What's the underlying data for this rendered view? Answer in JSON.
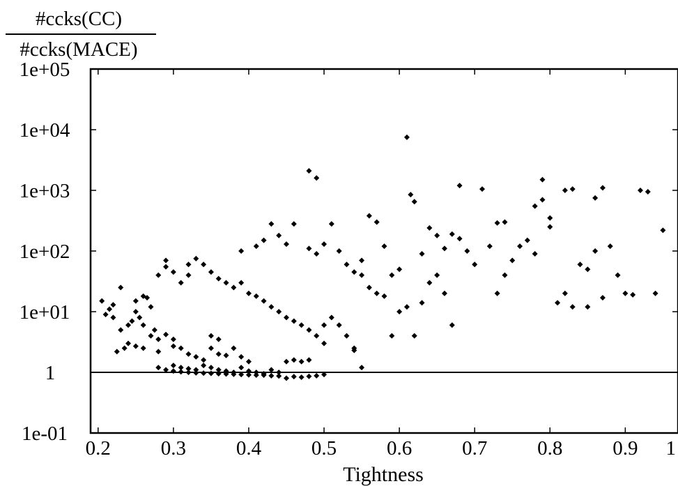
{
  "chart_data": {
    "type": "scatter",
    "title": "",
    "ylabel_numerator": "#ccks(CC)",
    "ylabel_denominator": "#ccks(MACE)",
    "xlabel": "Tightness",
    "y_scale": "log",
    "xlim": [
      0.19,
      0.97
    ],
    "ylim": [
      0.1,
      100000
    ],
    "grid": false,
    "legend": "none",
    "x_ticks": [
      {
        "value": 0.2,
        "label": "0.2"
      },
      {
        "value": 0.3,
        "label": "0.3"
      },
      {
        "value": 0.4,
        "label": "0.4"
      },
      {
        "value": 0.5,
        "label": "0.5"
      },
      {
        "value": 0.6,
        "label": "0.6"
      },
      {
        "value": 0.7,
        "label": "0.7"
      },
      {
        "value": 0.8,
        "label": "0.8"
      },
      {
        "value": 0.9,
        "label": "0.9"
      },
      {
        "value": 1.0,
        "label": "1"
      }
    ],
    "y_ticks": [
      {
        "value": 0.1,
        "label": "1e-01"
      },
      {
        "value": 1,
        "label": "1"
      },
      {
        "value": 10,
        "label": "1e+01"
      },
      {
        "value": 100,
        "label": "1e+02"
      },
      {
        "value": 1000,
        "label": "1e+03"
      },
      {
        "value": 10000,
        "label": "1e+04"
      },
      {
        "value": 100000,
        "label": "1e+05"
      }
    ],
    "reference_line_y": 1,
    "series": [
      {
        "marker_color": "#000000",
        "points": [
          [
            0.21,
            9
          ],
          [
            0.215,
            11
          ],
          [
            0.22,
            13
          ],
          [
            0.205,
            15
          ],
          [
            0.22,
            8
          ],
          [
            0.23,
            5
          ],
          [
            0.24,
            6
          ],
          [
            0.245,
            7
          ],
          [
            0.25,
            15
          ],
          [
            0.23,
            25
          ],
          [
            0.26,
            18
          ],
          [
            0.265,
            17
          ],
          [
            0.27,
            12
          ],
          [
            0.25,
            10
          ],
          [
            0.255,
            8
          ],
          [
            0.26,
            6
          ],
          [
            0.27,
            4
          ],
          [
            0.28,
            3.5
          ],
          [
            0.275,
            5
          ],
          [
            0.29,
            4.2
          ],
          [
            0.24,
            3
          ],
          [
            0.235,
            2.5
          ],
          [
            0.225,
            2.2
          ],
          [
            0.25,
            2.7
          ],
          [
            0.26,
            2.5
          ],
          [
            0.28,
            2.2
          ],
          [
            0.3,
            2.7
          ],
          [
            0.3,
            3.5
          ],
          [
            0.31,
            2.5
          ],
          [
            0.32,
            2
          ],
          [
            0.33,
            1.8
          ],
          [
            0.34,
            1.6
          ],
          [
            0.35,
            2.5
          ],
          [
            0.36,
            3.5
          ],
          [
            0.35,
            4
          ],
          [
            0.36,
            2
          ],
          [
            0.37,
            1.9
          ],
          [
            0.38,
            2.5
          ],
          [
            0.39,
            1.8
          ],
          [
            0.4,
            1.5
          ],
          [
            0.28,
            40
          ],
          [
            0.29,
            55
          ],
          [
            0.29,
            70
          ],
          [
            0.3,
            45
          ],
          [
            0.31,
            30
          ],
          [
            0.32,
            40
          ],
          [
            0.32,
            60
          ],
          [
            0.33,
            75
          ],
          [
            0.34,
            60
          ],
          [
            0.35,
            45
          ],
          [
            0.36,
            35
          ],
          [
            0.37,
            30
          ],
          [
            0.38,
            25
          ],
          [
            0.39,
            30
          ],
          [
            0.4,
            20
          ],
          [
            0.41,
            18
          ],
          [
            0.42,
            15
          ],
          [
            0.43,
            12
          ],
          [
            0.44,
            10
          ],
          [
            0.45,
            8
          ],
          [
            0.46,
            7
          ],
          [
            0.47,
            6
          ],
          [
            0.48,
            5
          ],
          [
            0.49,
            4
          ],
          [
            0.5,
            3
          ],
          [
            0.5,
            6
          ],
          [
            0.51,
            8
          ],
          [
            0.52,
            6
          ],
          [
            0.53,
            4
          ],
          [
            0.54,
            2.5
          ],
          [
            0.39,
            100
          ],
          [
            0.41,
            120
          ],
          [
            0.42,
            150
          ],
          [
            0.43,
            280
          ],
          [
            0.44,
            180
          ],
          [
            0.45,
            130
          ],
          [
            0.46,
            280
          ],
          [
            0.48,
            110
          ],
          [
            0.49,
            90
          ],
          [
            0.5,
            130
          ],
          [
            0.48,
            2100
          ],
          [
            0.49,
            1600
          ],
          [
            0.51,
            280
          ],
          [
            0.52,
            100
          ],
          [
            0.53,
            60
          ],
          [
            0.54,
            45
          ],
          [
            0.55,
            70
          ],
          [
            0.56,
            380
          ],
          [
            0.57,
            300
          ],
          [
            0.58,
            120
          ],
          [
            0.55,
            40
          ],
          [
            0.56,
            25
          ],
          [
            0.57,
            20
          ],
          [
            0.58,
            18
          ],
          [
            0.59,
            40
          ],
          [
            0.6,
            50
          ],
          [
            0.61,
            12
          ],
          [
            0.6,
            10
          ],
          [
            0.59,
            4
          ],
          [
            0.62,
            4
          ],
          [
            0.61,
            7500
          ],
          [
            0.615,
            850
          ],
          [
            0.62,
            650
          ],
          [
            0.63,
            90
          ],
          [
            0.64,
            240
          ],
          [
            0.65,
            180
          ],
          [
            0.66,
            110
          ],
          [
            0.67,
            190
          ],
          [
            0.68,
            160
          ],
          [
            0.69,
            100
          ],
          [
            0.63,
            14
          ],
          [
            0.64,
            30
          ],
          [
            0.65,
            40
          ],
          [
            0.66,
            20
          ],
          [
            0.67,
            6
          ],
          [
            0.68,
            1200
          ],
          [
            0.7,
            60
          ],
          [
            0.71,
            1050
          ],
          [
            0.72,
            120
          ],
          [
            0.73,
            290
          ],
          [
            0.74,
            300
          ],
          [
            0.73,
            20
          ],
          [
            0.74,
            40
          ],
          [
            0.75,
            70
          ],
          [
            0.76,
            120
          ],
          [
            0.77,
            150
          ],
          [
            0.78,
            90
          ],
          [
            0.79,
            1500
          ],
          [
            0.8,
            350
          ],
          [
            0.8,
            250
          ],
          [
            0.78,
            550
          ],
          [
            0.79,
            700
          ],
          [
            0.82,
            1000
          ],
          [
            0.83,
            1050
          ],
          [
            0.84,
            60
          ],
          [
            0.85,
            50
          ],
          [
            0.86,
            100
          ],
          [
            0.87,
            1100
          ],
          [
            0.88,
            120
          ],
          [
            0.89,
            40
          ],
          [
            0.81,
            14
          ],
          [
            0.82,
            20
          ],
          [
            0.83,
            12
          ],
          [
            0.85,
            12
          ],
          [
            0.86,
            750
          ],
          [
            0.87,
            17
          ],
          [
            0.9,
            20
          ],
          [
            0.91,
            19
          ],
          [
            0.92,
            1000
          ],
          [
            0.93,
            950
          ],
          [
            0.94,
            20
          ],
          [
            0.95,
            220
          ],
          [
            0.28,
            1.2
          ],
          [
            0.29,
            1.1
          ],
          [
            0.3,
            1.05
          ],
          [
            0.31,
            1.02
          ],
          [
            0.32,
            1.0
          ],
          [
            0.33,
            0.98
          ],
          [
            0.34,
            0.97
          ],
          [
            0.35,
            0.96
          ],
          [
            0.36,
            0.95
          ],
          [
            0.37,
            0.94
          ],
          [
            0.38,
            0.93
          ],
          [
            0.39,
            0.92
          ],
          [
            0.4,
            0.91
          ],
          [
            0.41,
            0.9
          ],
          [
            0.42,
            0.9
          ],
          [
            0.43,
            0.88
          ],
          [
            0.44,
            0.87
          ],
          [
            0.45,
            0.8
          ],
          [
            0.46,
            0.85
          ],
          [
            0.47,
            0.83
          ],
          [
            0.48,
            0.86
          ],
          [
            0.49,
            0.88
          ],
          [
            0.5,
            0.92
          ],
          [
            0.3,
            1.3
          ],
          [
            0.31,
            1.2
          ],
          [
            0.32,
            1.15
          ],
          [
            0.33,
            1.1
          ],
          [
            0.34,
            1.3
          ],
          [
            0.35,
            1.2
          ],
          [
            0.36,
            1.1
          ],
          [
            0.37,
            1.05
          ],
          [
            0.38,
            1.0
          ],
          [
            0.39,
            1.2
          ],
          [
            0.4,
            1.05
          ],
          [
            0.41,
            1.0
          ],
          [
            0.42,
            0.95
          ],
          [
            0.43,
            1.1
          ],
          [
            0.44,
            1.0
          ],
          [
            0.45,
            1.5
          ],
          [
            0.46,
            1.6
          ],
          [
            0.47,
            1.5
          ],
          [
            0.48,
            1.6
          ],
          [
            0.55,
            1.2
          ],
          [
            0.54,
            2.3
          ]
        ]
      }
    ]
  }
}
